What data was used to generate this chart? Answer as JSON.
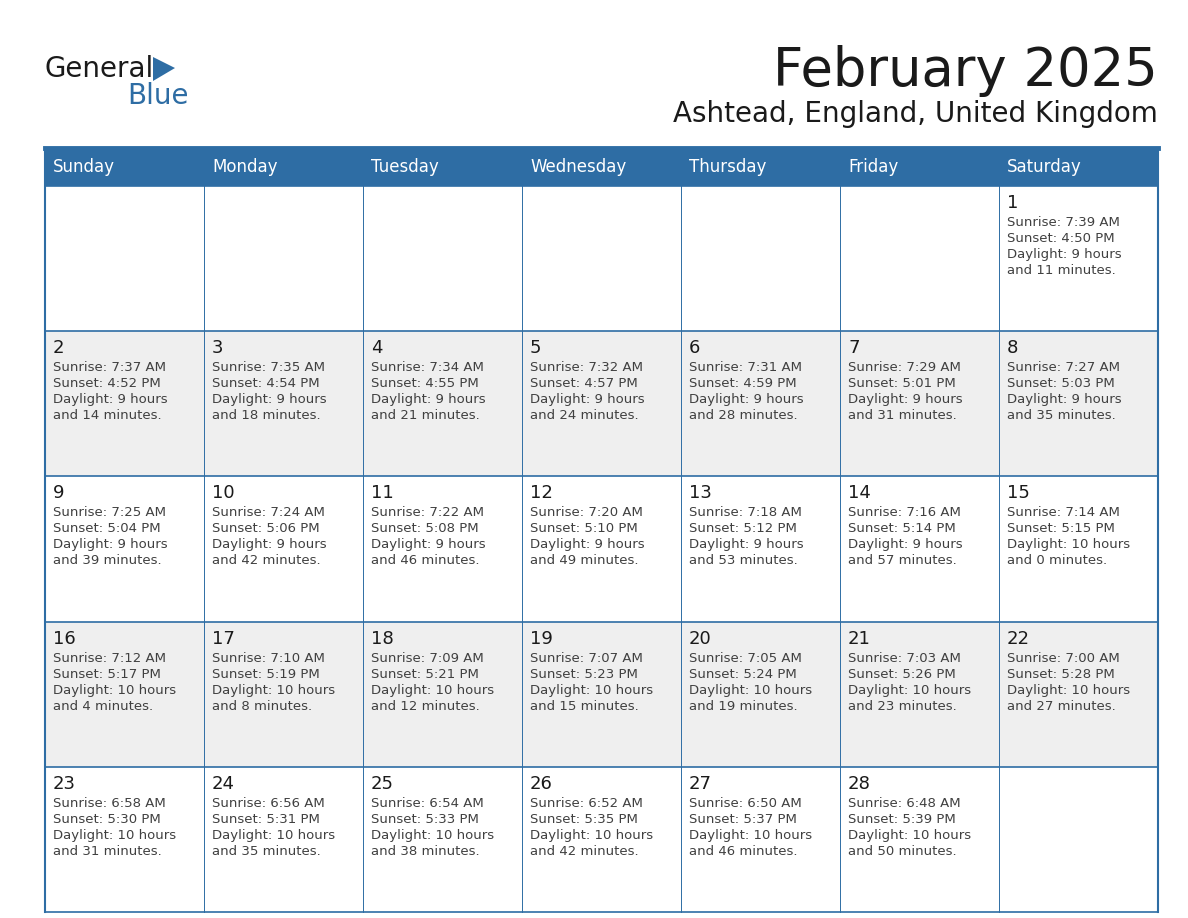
{
  "title": "February 2025",
  "subtitle": "Ashtead, England, United Kingdom",
  "header_bg": "#2E6DA4",
  "header_text_color": "#FFFFFF",
  "cell_bg_odd": "#EFEFEF",
  "cell_bg_even": "#FFFFFF",
  "border_color": "#2E6DA4",
  "text_color": "#404040",
  "day_number_color": "#1a1a1a",
  "weekdays": [
    "Sunday",
    "Monday",
    "Tuesday",
    "Wednesday",
    "Thursday",
    "Friday",
    "Saturday"
  ],
  "logo_text_general": "General",
  "logo_text_blue": "Blue",
  "logo_triangle_color": "#2E6DA4",
  "calendar": [
    [
      null,
      null,
      null,
      null,
      null,
      null,
      {
        "day": "1",
        "sunrise": "7:39 AM",
        "sunset": "4:50 PM",
        "daylight": "9 hours",
        "daylight2": "and 11 minutes."
      }
    ],
    [
      {
        "day": "2",
        "sunrise": "7:37 AM",
        "sunset": "4:52 PM",
        "daylight": "9 hours",
        "daylight2": "and 14 minutes."
      },
      {
        "day": "3",
        "sunrise": "7:35 AM",
        "sunset": "4:54 PM",
        "daylight": "9 hours",
        "daylight2": "and 18 minutes."
      },
      {
        "day": "4",
        "sunrise": "7:34 AM",
        "sunset": "4:55 PM",
        "daylight": "9 hours",
        "daylight2": "and 21 minutes."
      },
      {
        "day": "5",
        "sunrise": "7:32 AM",
        "sunset": "4:57 PM",
        "daylight": "9 hours",
        "daylight2": "and 24 minutes."
      },
      {
        "day": "6",
        "sunrise": "7:31 AM",
        "sunset": "4:59 PM",
        "daylight": "9 hours",
        "daylight2": "and 28 minutes."
      },
      {
        "day": "7",
        "sunrise": "7:29 AM",
        "sunset": "5:01 PM",
        "daylight": "9 hours",
        "daylight2": "and 31 minutes."
      },
      {
        "day": "8",
        "sunrise": "7:27 AM",
        "sunset": "5:03 PM",
        "daylight": "9 hours",
        "daylight2": "and 35 minutes."
      }
    ],
    [
      {
        "day": "9",
        "sunrise": "7:25 AM",
        "sunset": "5:04 PM",
        "daylight": "9 hours",
        "daylight2": "and 39 minutes."
      },
      {
        "day": "10",
        "sunrise": "7:24 AM",
        "sunset": "5:06 PM",
        "daylight": "9 hours",
        "daylight2": "and 42 minutes."
      },
      {
        "day": "11",
        "sunrise": "7:22 AM",
        "sunset": "5:08 PM",
        "daylight": "9 hours",
        "daylight2": "and 46 minutes."
      },
      {
        "day": "12",
        "sunrise": "7:20 AM",
        "sunset": "5:10 PM",
        "daylight": "9 hours",
        "daylight2": "and 49 minutes."
      },
      {
        "day": "13",
        "sunrise": "7:18 AM",
        "sunset": "5:12 PM",
        "daylight": "9 hours",
        "daylight2": "and 53 minutes."
      },
      {
        "day": "14",
        "sunrise": "7:16 AM",
        "sunset": "5:14 PM",
        "daylight": "9 hours",
        "daylight2": "and 57 minutes."
      },
      {
        "day": "15",
        "sunrise": "7:14 AM",
        "sunset": "5:15 PM",
        "daylight": "10 hours",
        "daylight2": "and 0 minutes."
      }
    ],
    [
      {
        "day": "16",
        "sunrise": "7:12 AM",
        "sunset": "5:17 PM",
        "daylight": "10 hours",
        "daylight2": "and 4 minutes."
      },
      {
        "day": "17",
        "sunrise": "7:10 AM",
        "sunset": "5:19 PM",
        "daylight": "10 hours",
        "daylight2": "and 8 minutes."
      },
      {
        "day": "18",
        "sunrise": "7:09 AM",
        "sunset": "5:21 PM",
        "daylight": "10 hours",
        "daylight2": "and 12 minutes."
      },
      {
        "day": "19",
        "sunrise": "7:07 AM",
        "sunset": "5:23 PM",
        "daylight": "10 hours",
        "daylight2": "and 15 minutes."
      },
      {
        "day": "20",
        "sunrise": "7:05 AM",
        "sunset": "5:24 PM",
        "daylight": "10 hours",
        "daylight2": "and 19 minutes."
      },
      {
        "day": "21",
        "sunrise": "7:03 AM",
        "sunset": "5:26 PM",
        "daylight": "10 hours",
        "daylight2": "and 23 minutes."
      },
      {
        "day": "22",
        "sunrise": "7:00 AM",
        "sunset": "5:28 PM",
        "daylight": "10 hours",
        "daylight2": "and 27 minutes."
      }
    ],
    [
      {
        "day": "23",
        "sunrise": "6:58 AM",
        "sunset": "5:30 PM",
        "daylight": "10 hours",
        "daylight2": "and 31 minutes."
      },
      {
        "day": "24",
        "sunrise": "6:56 AM",
        "sunset": "5:31 PM",
        "daylight": "10 hours",
        "daylight2": "and 35 minutes."
      },
      {
        "day": "25",
        "sunrise": "6:54 AM",
        "sunset": "5:33 PM",
        "daylight": "10 hours",
        "daylight2": "and 38 minutes."
      },
      {
        "day": "26",
        "sunrise": "6:52 AM",
        "sunset": "5:35 PM",
        "daylight": "10 hours",
        "daylight2": "and 42 minutes."
      },
      {
        "day": "27",
        "sunrise": "6:50 AM",
        "sunset": "5:37 PM",
        "daylight": "10 hours",
        "daylight2": "and 46 minutes."
      },
      {
        "day": "28",
        "sunrise": "6:48 AM",
        "sunset": "5:39 PM",
        "daylight": "10 hours",
        "daylight2": "and 50 minutes."
      },
      null
    ]
  ]
}
